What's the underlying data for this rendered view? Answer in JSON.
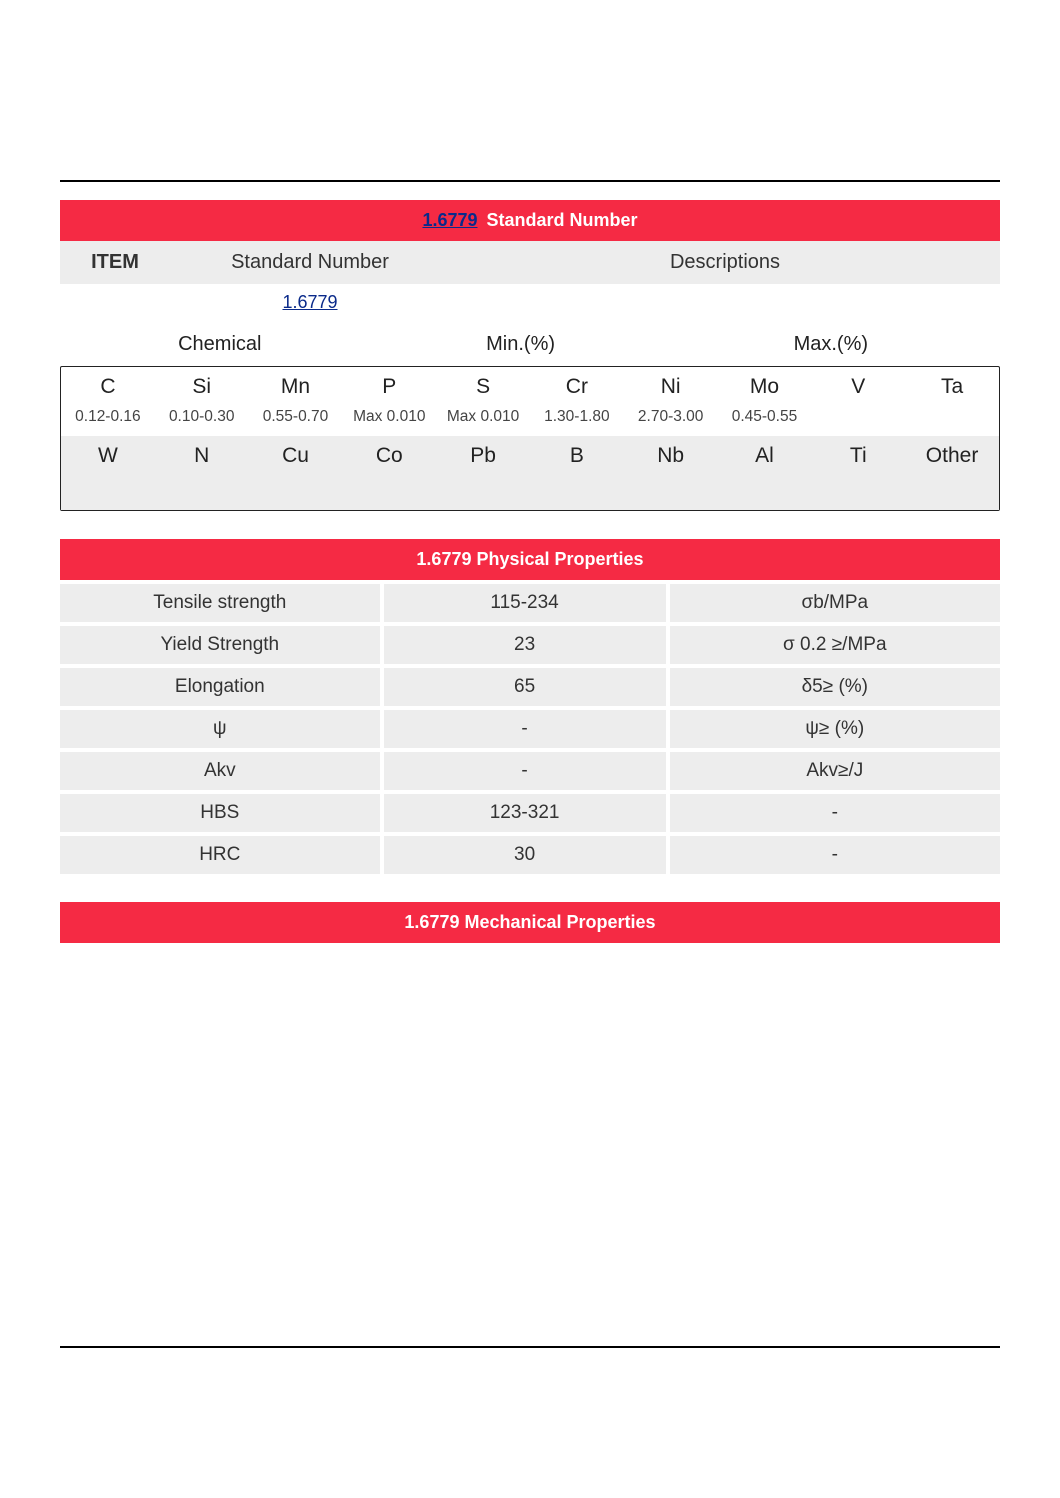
{
  "colors": {
    "accent_red": "#f52a44",
    "link_blue": "#0a2a8a",
    "row_gray": "#ededed",
    "text": "#333333",
    "border": "#222222",
    "background": "#ffffff"
  },
  "standard": {
    "header_link": "1.6779",
    "header_suffix": " Standard Number",
    "cols": {
      "item": "ITEM",
      "stdnum": "Standard Number",
      "desc": "Descriptions"
    },
    "link_value": "1.6779",
    "chem_headers": {
      "chemical": "Chemical",
      "min": "Min.(%)",
      "max": "Max.(%)"
    },
    "elem_row1": [
      "C",
      "Si",
      "Mn",
      "P",
      "S",
      "Cr",
      "Ni",
      "Mo",
      "V",
      "Ta"
    ],
    "vals_row1": [
      "0.12-0.16",
      "0.10-0.30",
      "0.55-0.70",
      "Max 0.010",
      "Max 0.010",
      "1.30-1.80",
      "2.70-3.00",
      "0.45-0.55",
      "",
      ""
    ],
    "elem_row2": [
      "W",
      "N",
      "Cu",
      "Co",
      "Pb",
      "B",
      "Nb",
      "Al",
      "Ti",
      "Other"
    ]
  },
  "physical": {
    "title": "1.6779 Physical Properties",
    "rows": [
      {
        "name": "Tensile strength",
        "value": "115-234",
        "unit": "σb/MPa"
      },
      {
        "name": "Yield Strength",
        "value": "23",
        "unit": "σ 0.2 ≥/MPa"
      },
      {
        "name": "Elongation",
        "value": "65",
        "unit": "δ5≥ (%)"
      },
      {
        "name": "ψ",
        "value": "-",
        "unit": "ψ≥ (%)"
      },
      {
        "name": "Akv",
        "value": "-",
        "unit": "Akv≥/J"
      },
      {
        "name": "HBS",
        "value": "123-321",
        "unit": "-"
      },
      {
        "name": "HRC",
        "value": "30",
        "unit": "-"
      }
    ]
  },
  "mechanical": {
    "title": "1.6779 Mechanical Properties"
  }
}
